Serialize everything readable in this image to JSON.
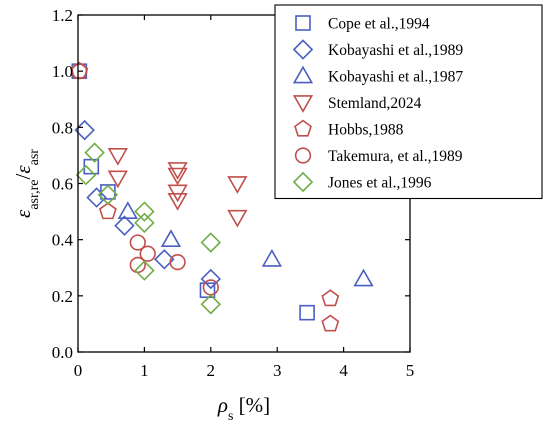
{
  "chart_data": {
    "type": "scatter",
    "title": "",
    "xlabel_symbol": "ρ",
    "xlabel_sub": "s",
    "xlabel_unit": " [%]",
    "ylabel_parts": {
      "num_symbol": "ε",
      "num_sub": "asr,re",
      "slash": "/",
      "den_symbol": "ε",
      "den_sub": "asr"
    },
    "xlim": [
      0,
      5
    ],
    "ylim": [
      0,
      1.2
    ],
    "x_ticks": [
      0,
      1,
      2,
      3,
      4,
      5
    ],
    "x_tick_labels": [
      "0",
      "1",
      "2",
      "3",
      "4",
      "5"
    ],
    "y_ticks": [
      0,
      0.2,
      0.4,
      0.6,
      0.8,
      1.0,
      1.2
    ],
    "y_tick_labels": [
      "0.0",
      "0.2",
      "0.4",
      "0.6",
      "0.8",
      "1.0",
      "1.2"
    ],
    "grid": false,
    "legend_position": "top-right",
    "series": [
      {
        "name": "Cope et al.,1994",
        "marker": "square",
        "color": "#4a5fc1",
        "points": [
          [
            0.02,
            1.0
          ],
          [
            0.2,
            0.66
          ],
          [
            0.45,
            0.57
          ],
          [
            1.95,
            0.22
          ],
          [
            3.45,
            0.14
          ]
        ]
      },
      {
        "name": "Kobayashi et al.,1989",
        "marker": "diamond",
        "color": "#4a5fc1",
        "points": [
          [
            0.1,
            0.79
          ],
          [
            0.28,
            0.55
          ],
          [
            0.7,
            0.45
          ],
          [
            1.3,
            0.33
          ],
          [
            2.0,
            0.26
          ]
        ]
      },
      {
        "name": "Kobayashi et al.,1987",
        "marker": "triangle-up",
        "color": "#4a5fc1",
        "points": [
          [
            0.75,
            0.5
          ],
          [
            1.4,
            0.4
          ],
          [
            2.92,
            0.33
          ],
          [
            4.3,
            0.26
          ]
        ]
      },
      {
        "name": "Stemland,2024",
        "marker": "triangle-down",
        "color": "#c0504d",
        "points": [
          [
            0.6,
            0.7
          ],
          [
            0.6,
            0.62
          ],
          [
            1.5,
            0.65
          ],
          [
            1.5,
            0.63
          ],
          [
            1.5,
            0.57
          ],
          [
            1.5,
            0.54
          ],
          [
            2.4,
            0.6
          ],
          [
            2.4,
            0.48
          ]
        ]
      },
      {
        "name": "Hobbs,1988",
        "marker": "pentagon",
        "color": "#c0504d",
        "points": [
          [
            0.02,
            1.0
          ],
          [
            0.45,
            0.5
          ],
          [
            3.8,
            0.19
          ],
          [
            3.8,
            0.1
          ]
        ]
      },
      {
        "name": "Takemura, et al.,1989",
        "marker": "circle",
        "color": "#c0504d",
        "points": [
          [
            0.02,
            1.0
          ],
          [
            0.9,
            0.39
          ],
          [
            0.9,
            0.31
          ],
          [
            1.05,
            0.35
          ],
          [
            1.5,
            0.32
          ],
          [
            2.0,
            0.23
          ]
        ]
      },
      {
        "name": "Jones et al.,1996",
        "marker": "diamond",
        "color": "#70ad47",
        "points": [
          [
            0.12,
            0.63
          ],
          [
            0.25,
            0.71
          ],
          [
            0.45,
            0.56
          ],
          [
            1.0,
            0.5
          ],
          [
            1.0,
            0.46
          ],
          [
            1.0,
            0.29
          ],
          [
            2.0,
            0.39
          ],
          [
            2.0,
            0.17
          ]
        ]
      }
    ]
  }
}
